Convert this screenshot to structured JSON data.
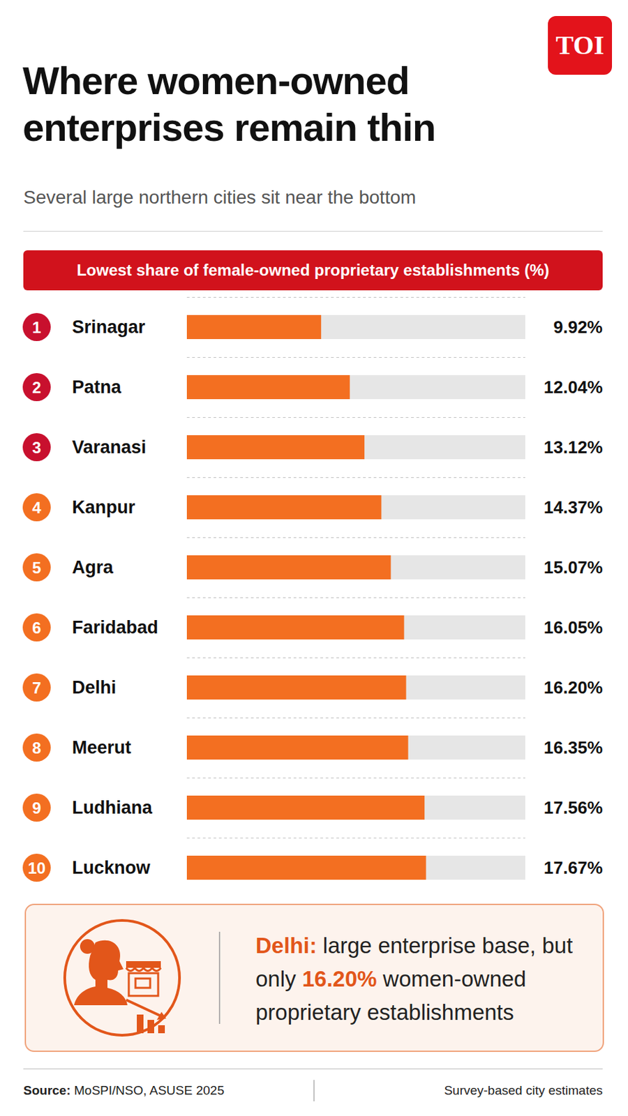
{
  "logo": "TOI",
  "title": "Where women-owned enterprises remain thin",
  "subtitle": "Several large northern cities sit near the bottom",
  "chart_data": {
    "type": "bar",
    "orientation": "horizontal",
    "title": "Lowest share of female-owned proprietary establishments (%)",
    "ranks": [
      1,
      2,
      3,
      4,
      5,
      6,
      7,
      8,
      9,
      10
    ],
    "categories": [
      "Srinagar",
      "Patna",
      "Varanasi",
      "Kanpur",
      "Agra",
      "Faridabad",
      "Delhi",
      "Meerut",
      "Ludhiana",
      "Lucknow"
    ],
    "values": [
      9.92,
      12.04,
      13.12,
      14.37,
      15.07,
      16.05,
      16.2,
      16.35,
      17.56,
      17.67
    ],
    "value_labels": [
      "9.92%",
      "12.04%",
      "13.12%",
      "14.37%",
      "15.07%",
      "16.05%",
      "16.20%",
      "16.35%",
      "17.56%",
      "17.67%"
    ],
    "color": "#f36f21",
    "xlim": [
      0,
      25
    ],
    "grid": false,
    "tick_labels": "y",
    "data_labels": true
  },
  "callout": {
    "lead": "Delhi:",
    "text_before": "large enterprise base, but only",
    "highlight": "16.20%",
    "text_after": "women-owned proprietary establishments"
  },
  "footer": {
    "source_label": "Source:",
    "source": "MoSPI/NSO, ASUSE 2025",
    "note": "Survey-based city estimates"
  }
}
